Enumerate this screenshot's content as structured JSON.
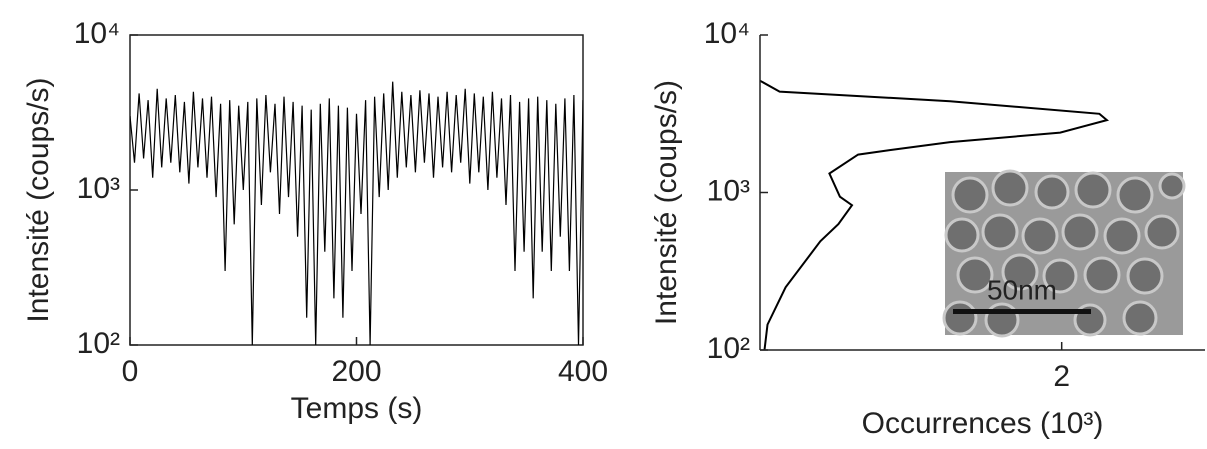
{
  "chart_data": [
    {
      "type": "line",
      "xlabel": "Temps (s)",
      "ylabel": "Intensité (coups/s)",
      "color": "#000000",
      "log_y": true,
      "xlim": [
        0,
        400
      ],
      "xticks": [
        0,
        200,
        400
      ],
      "ylim": [
        100,
        10000
      ],
      "yticks": [
        {
          "value": 100,
          "label": "10²"
        },
        {
          "value": 1000,
          "label": "10³"
        },
        {
          "value": 10000,
          "label": "10⁴"
        }
      ],
      "x": [
        0,
        4,
        8,
        12,
        16,
        20,
        24,
        28,
        32,
        36,
        40,
        44,
        48,
        52,
        56,
        60,
        64,
        68,
        72,
        76,
        80,
        84,
        88,
        92,
        96,
        100,
        104,
        108,
        112,
        116,
        120,
        124,
        128,
        132,
        136,
        140,
        144,
        148,
        152,
        156,
        160,
        164,
        168,
        172,
        176,
        180,
        184,
        188,
        192,
        196,
        200,
        204,
        208,
        212,
        216,
        220,
        224,
        228,
        232,
        236,
        240,
        244,
        248,
        252,
        256,
        260,
        264,
        268,
        272,
        276,
        280,
        284,
        288,
        292,
        296,
        300,
        304,
        308,
        312,
        316,
        320,
        324,
        328,
        332,
        336,
        340,
        344,
        348,
        352,
        356,
        360,
        364,
        368,
        372,
        376,
        380,
        384,
        388,
        392,
        396,
        400
      ],
      "values": [
        3000,
        1500,
        4200,
        1600,
        3800,
        1200,
        4500,
        1400,
        3900,
        1500,
        4100,
        1300,
        3700,
        1100,
        4300,
        1400,
        3900,
        1200,
        4000,
        900,
        3600,
        300,
        3800,
        600,
        3500,
        1000,
        3700,
        100,
        3900,
        800,
        4100,
        1300,
        3600,
        700,
        4000,
        900,
        3700,
        500,
        3500,
        150,
        3300,
        100,
        3600,
        400,
        3900,
        200,
        3500,
        150,
        3400,
        300,
        3100,
        700,
        3800,
        100,
        4000,
        900,
        4200,
        1000,
        5000,
        1200,
        4300,
        1400,
        4100,
        1300,
        4400,
        1500,
        4200,
        1200,
        4000,
        1400,
        4300,
        1300,
        4100,
        1500,
        4500,
        1100,
        4200,
        1300,
        4000,
        1000,
        4300,
        1200,
        3900,
        800,
        4100,
        300,
        3700,
        400,
        3900,
        200,
        4000,
        400,
        3800,
        300,
        3600,
        500,
        3900,
        300,
        4100,
        100,
        3800
      ]
    },
    {
      "type": "line",
      "orientation": "horizontal",
      "xlabel": "Occurrences (10³)",
      "ylabel": "Intensité (coups/s)",
      "color": "#000000",
      "log_y": true,
      "xlim": [
        0,
        2.95
      ],
      "xticks": [
        2
      ],
      "ylim": [
        100,
        10000
      ],
      "yticks": [
        {
          "value": 100,
          "label": "10²"
        },
        {
          "value": 1000,
          "label": "10³"
        },
        {
          "value": 10000,
          "label": "10⁴"
        }
      ],
      "y": [
        100,
        145,
        250,
        490,
        630,
        830,
        940,
        1320,
        1740,
        1860,
        2090,
        2400,
        2880,
        3160,
        3800,
        4370,
        5130
      ],
      "values": [
        0.03,
        0.05,
        0.17,
        0.4,
        0.52,
        0.61,
        0.53,
        0.46,
        0.65,
        0.86,
        1.26,
        1.99,
        2.3,
        2.25,
        1.26,
        0.13,
        0
      ],
      "inset_label": "50nm"
    }
  ]
}
